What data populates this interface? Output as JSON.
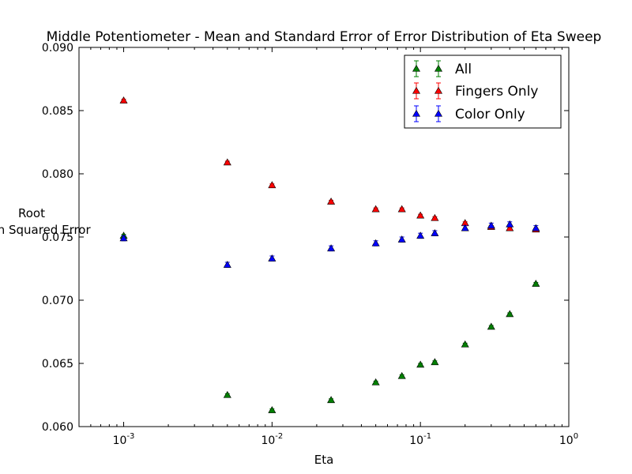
{
  "chart_data": {
    "type": "scatter",
    "title": "Middle Potentiometer - Mean and Standard Error of Error Distribution of Eta Sweep",
    "xlabel": "Eta",
    "ylabel_lines": [
      "Root",
      "Mean Squared Error"
    ],
    "xscale": "log",
    "xlim": [
      0.0005,
      1.0
    ],
    "ylim": [
      0.06,
      0.09
    ],
    "yticks": [
      "0.060",
      "0.065",
      "0.070",
      "0.075",
      "0.080",
      "0.085",
      "0.090"
    ],
    "ytick_values": [
      0.06,
      0.065,
      0.07,
      0.075,
      0.08,
      0.085,
      0.09
    ],
    "xticks": [
      {
        "value": 0.001,
        "base": "10",
        "exp": "-3"
      },
      {
        "value": 0.01,
        "base": "10",
        "exp": "-2"
      },
      {
        "value": 0.1,
        "base": "10",
        "exp": "-1"
      },
      {
        "value": 1.0,
        "base": "10",
        "exp": "0"
      }
    ],
    "legend_position": "upper right",
    "x": [
      0.001,
      0.005,
      0.01,
      0.025,
      0.05,
      0.075,
      0.1,
      0.125,
      0.2,
      0.3,
      0.4,
      0.6
    ],
    "series": [
      {
        "name": "All",
        "color": "#007f00",
        "values": [
          0.0751,
          0.0625,
          0.0613,
          0.0621,
          0.0635,
          0.064,
          0.0649,
          0.0651,
          0.0665,
          0.0679,
          0.0689,
          0.0713
        ],
        "errors": [
          0.0001,
          0.0001,
          0.0001,
          0.0001,
          0.0001,
          0.0001,
          0.0001,
          0.0001,
          0.0001,
          0.0001,
          0.0001,
          0.0001
        ]
      },
      {
        "name": "Fingers Only",
        "color": "#ff0000",
        "values": [
          0.0858,
          0.0809,
          0.0791,
          0.0778,
          0.0772,
          0.0772,
          0.0767,
          0.0765,
          0.0761,
          0.0758,
          0.0757,
          0.0756
        ],
        "errors": [
          0.0001,
          0.0001,
          0.0001,
          0.0001,
          0.0001,
          0.0001,
          0.0001,
          0.0001,
          0.0001,
          0.0001,
          0.0001,
          0.0001
        ]
      },
      {
        "name": "Color Only",
        "color": "#0000ff",
        "values": [
          0.0749,
          0.0728,
          0.0733,
          0.0741,
          0.0745,
          0.0748,
          0.0751,
          0.0753,
          0.0757,
          0.0759,
          0.076,
          0.0757
        ],
        "errors": [
          0.0002,
          0.0002,
          0.0002,
          0.0002,
          0.0002,
          0.0002,
          0.0002,
          0.0002,
          0.0002,
          0.0002,
          0.0002,
          0.0002
        ]
      }
    ]
  }
}
